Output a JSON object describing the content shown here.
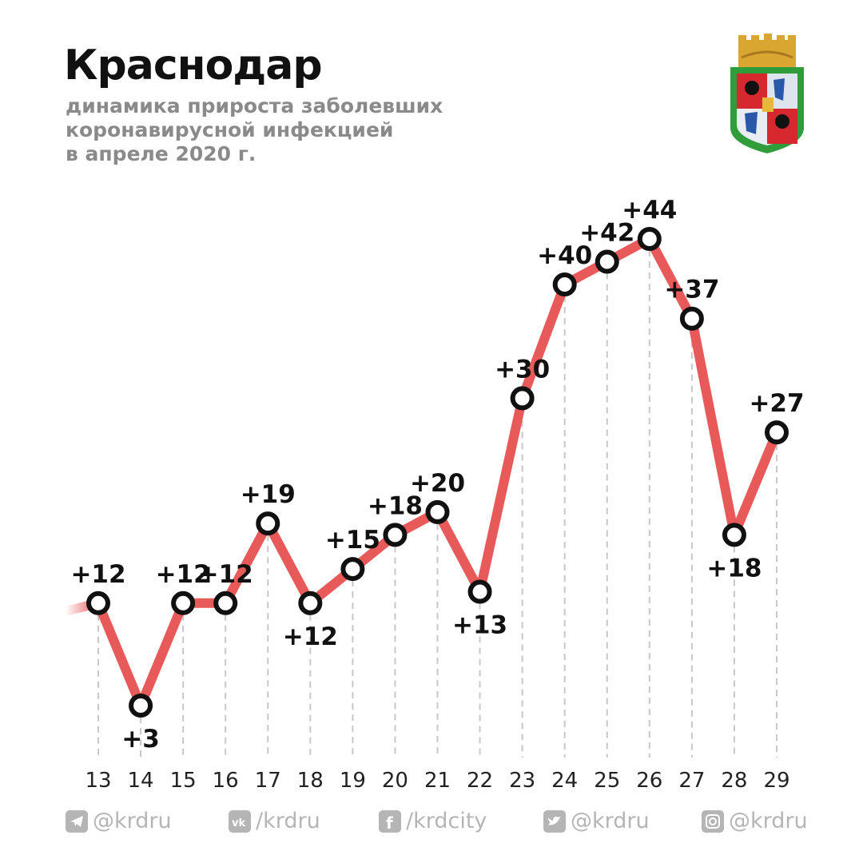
{
  "header": {
    "title": "Краснодар",
    "subtitle_lines": [
      "динамика прироста заболевших",
      "коронавирусной инфекцией",
      "в апреле 2020 г."
    ]
  },
  "colors": {
    "line": "#e85a5a",
    "marker_stroke": "#111111",
    "marker_fill": "#ffffff",
    "gridline": "#c8c8c8",
    "footer_text": "#b5b5b5"
  },
  "chart_data": {
    "type": "line",
    "title": "Краснодар",
    "subtitle": "динамика прироста заболевших коронавирусной инфекцией в апреле 2020 г.",
    "categories": [
      "13",
      "14",
      "15",
      "16",
      "17",
      "18",
      "19",
      "20",
      "21",
      "22",
      "23",
      "24",
      "25",
      "26",
      "27",
      "28",
      "29"
    ],
    "values": [
      12,
      3,
      12,
      12,
      19,
      12,
      15,
      18,
      20,
      13,
      30,
      40,
      42,
      44,
      37,
      18,
      27
    ],
    "data_labels": [
      "+12",
      "+3",
      "+12",
      "+12",
      "+19",
      "+12",
      "+15",
      "+18",
      "+20",
      "+13",
      "+30",
      "+40",
      "+42",
      "+44",
      "+37",
      "+18",
      "+27"
    ],
    "xlabel": "",
    "ylabel": "",
    "grid": "vertical dashed lines",
    "legend": "none"
  },
  "footer": {
    "items": [
      {
        "icon": "telegram-icon",
        "label": "@krdru"
      },
      {
        "icon": "vk-icon",
        "label": "/krdru"
      },
      {
        "icon": "facebook-icon",
        "label": "/krdcity"
      },
      {
        "icon": "twitter-icon",
        "label": "@krdru"
      },
      {
        "icon": "instagram-icon",
        "label": "@krdru"
      }
    ]
  }
}
